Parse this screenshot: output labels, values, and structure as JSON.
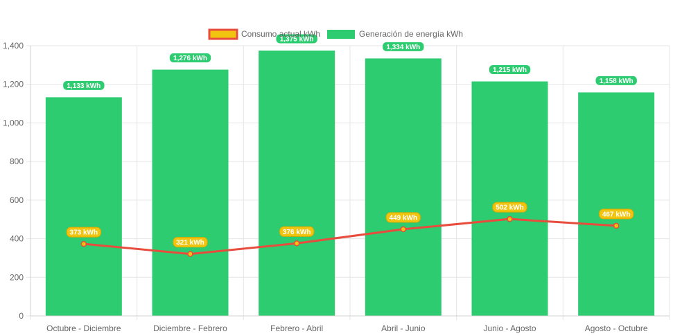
{
  "chart_data": {
    "type": "bar",
    "categories": [
      "Octubre - Diciembre",
      "Diciembre - Febrero",
      "Febrero - Abril",
      "Abril - Junio",
      "Junio - Agosto",
      "Agosto - Octubre"
    ],
    "series": [
      {
        "name": "Consumo actual kWh",
        "type": "line",
        "values": [
          373,
          321,
          376,
          449,
          502,
          467
        ],
        "labels": [
          "373 kWh",
          "321 kWh",
          "376 kWh",
          "449 kWh",
          "502 kWh",
          "467 kWh"
        ],
        "color": "#e74c3c",
        "legend_fill": "#f1c40f",
        "label_color": "#f1c40f"
      },
      {
        "name": "Generación de energía kWh",
        "type": "bar",
        "values": [
          1133,
          1276,
          1375,
          1334,
          1215,
          1158
        ],
        "labels": [
          "1,133 kWh",
          "1,276 kWh",
          "1,375 kWh",
          "1,334 kWh",
          "1,215 kWh",
          "1,158 kWh"
        ],
        "color": "#2ecc71"
      }
    ],
    "ylim": [
      0,
      1400
    ],
    "yticks": [
      "0",
      "200",
      "400",
      "600",
      "800",
      "1,000",
      "1,200",
      "1,400"
    ],
    "ytick_values": [
      0,
      200,
      400,
      600,
      800,
      1000,
      1200,
      1400
    ],
    "grid": true,
    "legend_position": "top"
  }
}
